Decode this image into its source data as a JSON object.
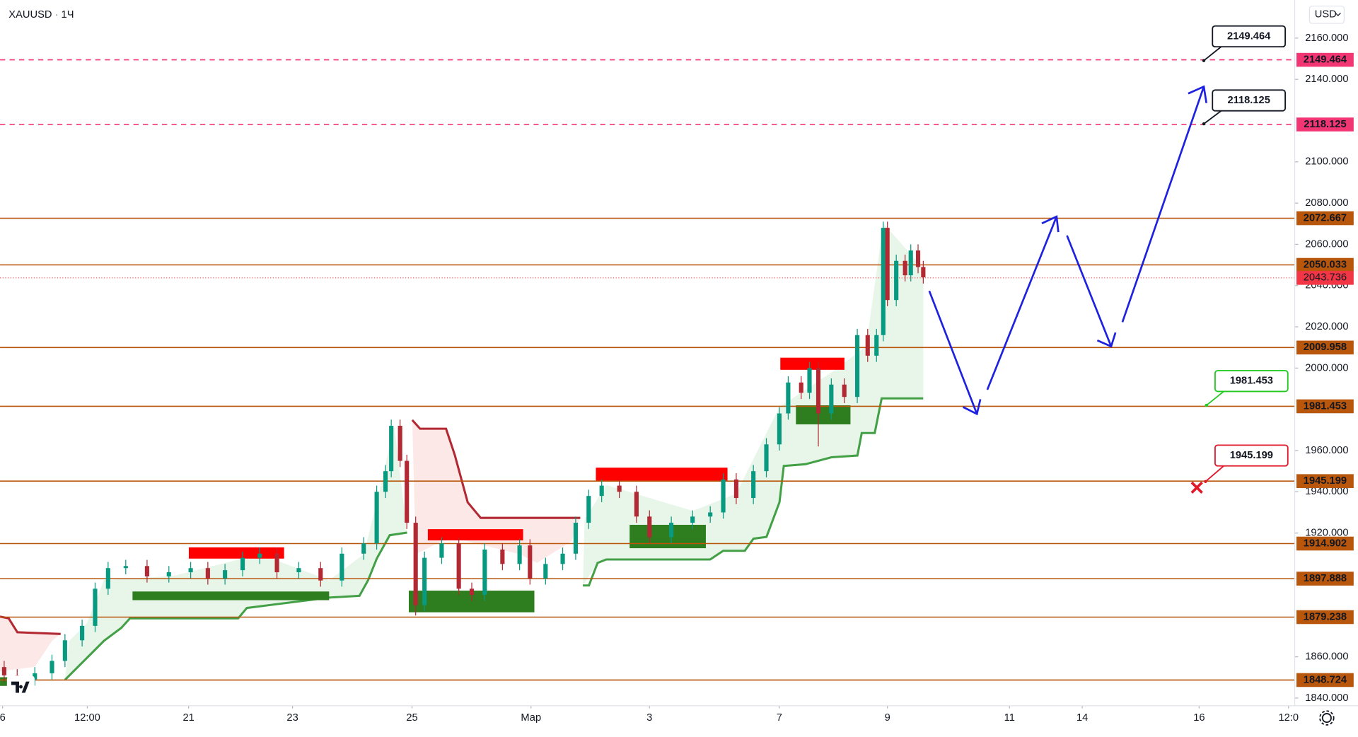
{
  "header": {
    "symbol": "XAUUSD",
    "interval": "1Ч",
    "currency": "USD"
  },
  "chart_data": {
    "type": "candlestick",
    "x": [
      0.8,
      3.3,
      6.7,
      10,
      12.5,
      15.8,
      18.3,
      20.8,
      24.2,
      28.3,
      32.5,
      36.7,
      40,
      43.3,
      46.7,
      50,
      53.3,
      57.5,
      61.7,
      65.8,
      70,
      72.5,
      74.2,
      75.3,
      77,
      78.3,
      80,
      81.7,
      85,
      88.3,
      90.8,
      93.3,
      96.7,
      100,
      102,
      105,
      108.3,
      110.8,
      113.3,
      115.8,
      119.2,
      122.5,
      125,
      129.2,
      133.3,
      136.7,
      139.2,
      141.7,
      145,
      147.5,
      150,
      151.7,
      154.2,
      155.8,
      157.5,
      160,
      162.5,
      165,
      167,
      168.7,
      170,
      170.8,
      172.5,
      174.2,
      175.3,
      176.7,
      177.7
    ],
    "open": [
      1855,
      1851,
      1849,
      1852,
      1858,
      1868,
      1875,
      1893,
      1903,
      1904,
      1899,
      1901,
      1903,
      1898,
      1902,
      1908,
      1910,
      1901,
      1903,
      1897,
      1910,
      1915,
      1940,
      1950,
      1972,
      1955,
      1925,
      1885,
      1908,
      1915,
      1893,
      1890,
      1912,
      1905,
      1914,
      1898,
      1905,
      1910,
      1925,
      1938,
      1943,
      1940,
      1928,
      1918,
      1925,
      1928,
      1930,
      1946,
      1937,
      1950,
      1963,
      1978,
      1993,
      1988,
      2000,
      1978,
      1992,
      1986,
      2016,
      2006,
      2016,
      2068,
      2033,
      2052,
      2045,
      2057,
      2049
    ],
    "high": [
      1858,
      1854,
      1855,
      1861,
      1871,
      1878,
      1896,
      1906,
      1907,
      1907,
      1904,
      1906,
      1906,
      1905,
      1911,
      1913,
      1913,
      1906,
      1906,
      1913,
      1918,
      1943,
      1953,
      1975,
      1975,
      1958,
      1928,
      1911,
      1918,
      1918,
      1896,
      1915,
      1915,
      1917,
      1917,
      1908,
      1913,
      1928,
      1941,
      1946,
      1946,
      1943,
      1931,
      1928,
      1931,
      1933,
      1949,
      1949,
      1953,
      1966,
      1981,
      1996,
      1996,
      2003,
      2003,
      1995,
      1995,
      2019,
      2019,
      2019,
      2071,
      2071,
      2055,
      2055,
      2060,
      2060,
      2052
    ],
    "low": [
      1848,
      1846,
      1846,
      1849,
      1855,
      1865,
      1872,
      1890,
      1900,
      1896,
      1896,
      1898,
      1895,
      1895,
      1899,
      1905,
      1898,
      1898,
      1894,
      1894,
      1907,
      1912,
      1937,
      1947,
      1952,
      1922,
      1880,
      1882,
      1905,
      1890,
      1887,
      1887,
      1902,
      1902,
      1895,
      1895,
      1902,
      1907,
      1922,
      1935,
      1937,
      1925,
      1915,
      1915,
      1922,
      1925,
      1927,
      1934,
      1934,
      1947,
      1960,
      1975,
      1985,
      1985,
      1962,
      1975,
      1983,
      1983,
      2003,
      2003,
      2013,
      2030,
      2030,
      2042,
      2042,
      2046,
      2041
    ],
    "close": [
      1851,
      1849,
      1852,
      1858,
      1868,
      1875,
      1893,
      1903,
      1904,
      1899,
      1901,
      1903,
      1898,
      1902,
      1908,
      1910,
      1901,
      1903,
      1897,
      1910,
      1915,
      1940,
      1950,
      1972,
      1955,
      1925,
      1885,
      1908,
      1915,
      1893,
      1890,
      1912,
      1905,
      1914,
      1898,
      1905,
      1910,
      1925,
      1938,
      1943,
      1940,
      1928,
      1918,
      1925,
      1928,
      1930,
      1946,
      1937,
      1950,
      1963,
      1978,
      1993,
      1988,
      2000,
      1978,
      1992,
      1986,
      2016,
      2006,
      2016,
      2068,
      2033,
      2052,
      2045,
      2057,
      2049,
      2044
    ],
    "up_color": "#089981",
    "down_color": "#b22833",
    "xlim": [
      0,
      249.2
    ],
    "ylim": [
      1836.22,
      2178.48
    ],
    "xticks": [
      {
        "value": 0.5,
        "label": "6"
      },
      {
        "value": 16.8,
        "label": "12:00"
      },
      {
        "value": 36.3,
        "label": "21"
      },
      {
        "value": 56.3,
        "label": "23"
      },
      {
        "value": 79.3,
        "label": "25"
      },
      {
        "value": 102.2,
        "label": "Мар"
      },
      {
        "value": 125,
        "label": "3"
      },
      {
        "value": 150,
        "label": "7"
      },
      {
        "value": 170.8,
        "label": "9"
      },
      {
        "value": 194.3,
        "label": "11"
      },
      {
        "value": 208.3,
        "label": "14"
      },
      {
        "value": 230.8,
        "label": "16"
      },
      {
        "value": 248,
        "label": "12:0"
      }
    ],
    "yticks": [
      {
        "value": 2160,
        "label": "2160.000"
      },
      {
        "value": 2140,
        "label": "2140.000"
      },
      {
        "value": 2100,
        "label": "2100.000"
      },
      {
        "value": 2080,
        "label": "2080.000"
      },
      {
        "value": 2060,
        "label": "2060.000"
      },
      {
        "value": 2040,
        "label": "2040.000"
      },
      {
        "value": 2020,
        "label": "2020.000"
      },
      {
        "value": 2000,
        "label": "2000.000"
      },
      {
        "value": 1960,
        "label": "1960.000"
      },
      {
        "value": 1940,
        "label": "1940.000"
      },
      {
        "value": 1920,
        "label": "1920.000"
      },
      {
        "value": 1860,
        "label": "1860.000"
      },
      {
        "value": 1840,
        "label": "1840.000"
      }
    ],
    "levels": [
      {
        "value": 2149.464,
        "color": "#f23673",
        "style": "dashed"
      },
      {
        "value": 2118.125,
        "color": "#f23673",
        "style": "dashed"
      },
      {
        "value": 2072.667,
        "color": "#b8560c",
        "style": "solid"
      },
      {
        "value": 2050.033,
        "color": "#b8560c",
        "style": "solid"
      },
      {
        "value": 2009.958,
        "color": "#b8560c",
        "style": "solid"
      },
      {
        "value": 1981.453,
        "color": "#b8560c",
        "style": "solid"
      },
      {
        "value": 1945.199,
        "color": "#b8560c",
        "style": "solid"
      },
      {
        "value": 1914.902,
        "color": "#b8560c",
        "style": "solid"
      },
      {
        "value": 1897.888,
        "color": "#b8560c",
        "style": "solid"
      },
      {
        "value": 1879.238,
        "color": "#b8560c",
        "style": "solid"
      },
      {
        "value": 1848.724,
        "color": "#b8560c",
        "style": "solid"
      }
    ],
    "last_price": {
      "value": 2043.736,
      "color": "#f23645"
    },
    "callouts": [
      {
        "value": 2149.464,
        "color": "#131722"
      },
      {
        "value": 2118.125,
        "color": "#131722"
      },
      {
        "value": 1981.453,
        "color": "#22c922"
      },
      {
        "value": 1945.199,
        "color": "#e0182a"
      }
    ]
  }
}
